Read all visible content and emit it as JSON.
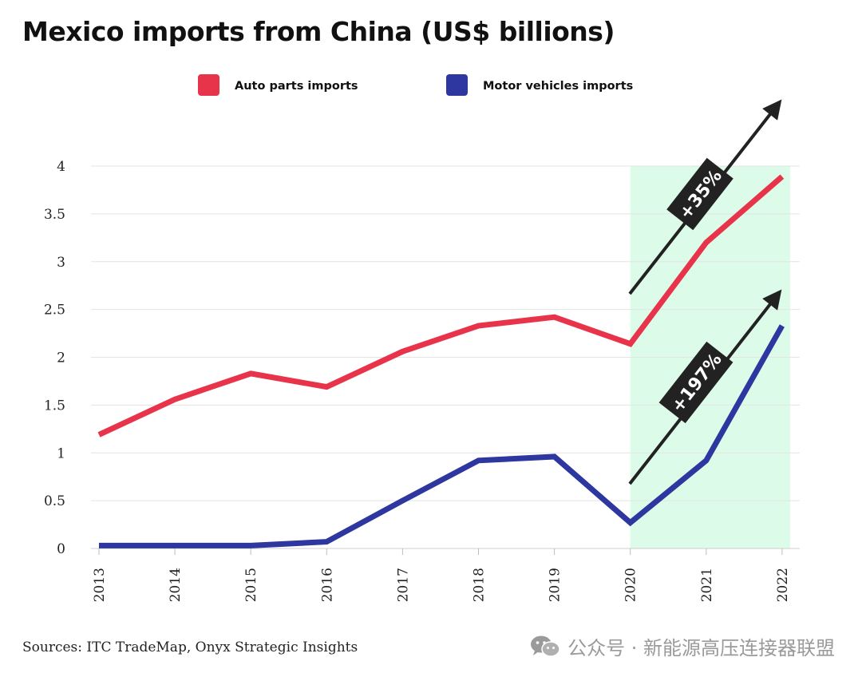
{
  "title": "Mexico imports from China (US$ billions)",
  "source": "Sources:  ITC TradeMap, Onyx Strategic Insights",
  "watermark": {
    "icon": "wechat-icon",
    "text": "公众号 · 新能源高压连接器联盟"
  },
  "chart_data": {
    "type": "line",
    "title": "Mexico imports from China (US$ billions)",
    "x": [
      "2013",
      "2014",
      "2015",
      "2016",
      "2017",
      "2018",
      "2019",
      "2020",
      "2021",
      "2022"
    ],
    "ylim": [
      0,
      4
    ],
    "yticks": [
      "0",
      "0.5",
      "1",
      "1.5",
      "2",
      "2.5",
      "3",
      "3.5",
      "4"
    ],
    "grid": "horizontal",
    "legend_position": "top",
    "series": [
      {
        "name": "Auto parts imports",
        "color": "#e8344a",
        "values": [
          1.19,
          1.56,
          1.83,
          1.69,
          2.06,
          2.33,
          2.42,
          2.14,
          3.2,
          3.89
        ]
      },
      {
        "name": "Motor vehicles imports",
        "color": "#2e36a0",
        "values": [
          0.03,
          0.03,
          0.03,
          0.07,
          0.5,
          0.92,
          0.96,
          0.27,
          0.92,
          2.33
        ]
      }
    ],
    "highlight": {
      "from": "2020",
      "to": "2022",
      "color": "#dcfbe9"
    },
    "annotations": [
      {
        "label": "+35%",
        "series": "Auto parts imports"
      },
      {
        "label": "+197%",
        "series": "Motor vehicles imports"
      }
    ],
    "annotation_color": "#222222"
  }
}
